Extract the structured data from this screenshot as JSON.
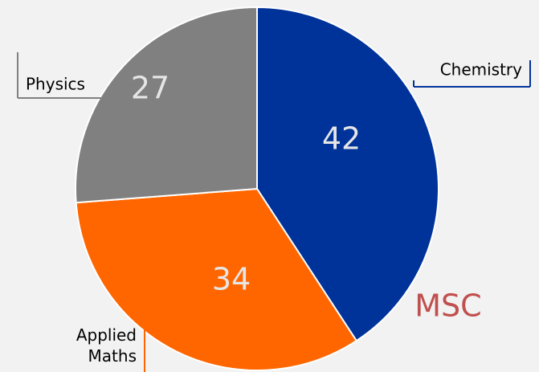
{
  "chart_data": {
    "type": "pie",
    "title": "MSC",
    "categories": [
      "Chemistry",
      "Applied Maths",
      "Physics"
    ],
    "values": [
      42,
      34,
      27
    ],
    "colors": [
      "#003399",
      "#ff6600",
      "#808080"
    ]
  }
}
